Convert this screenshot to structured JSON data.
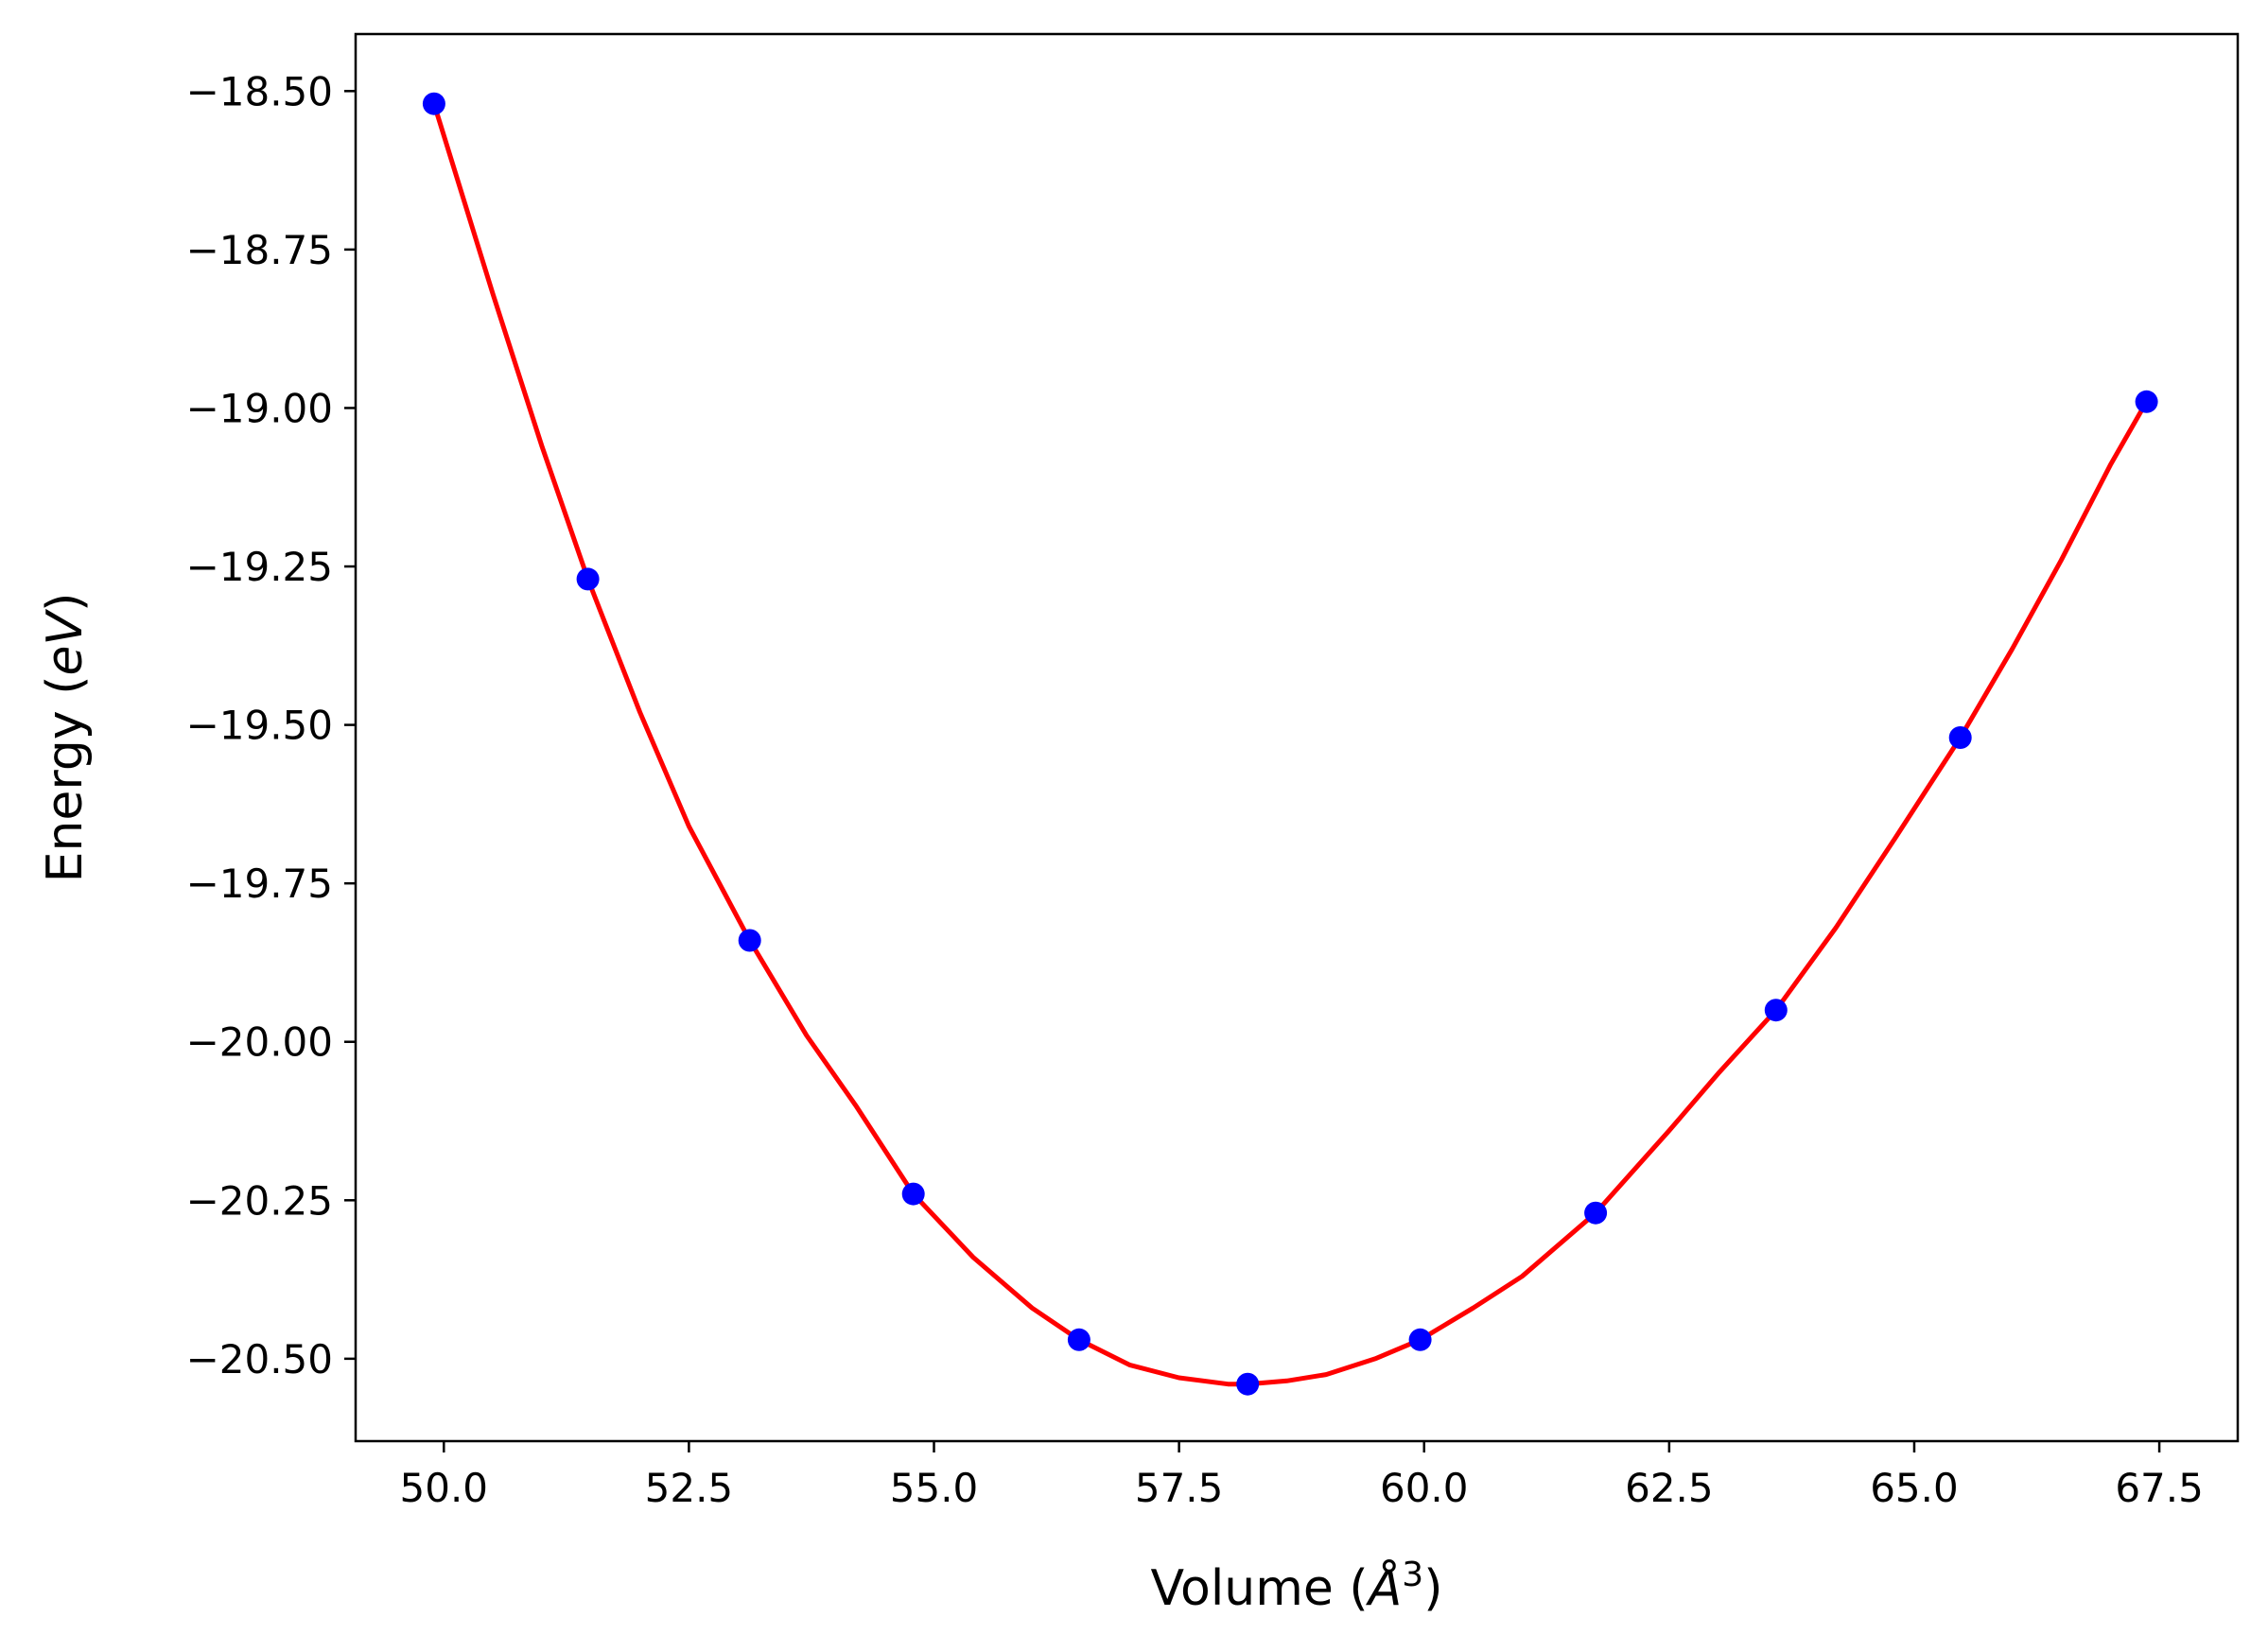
{
  "chart_data": {
    "type": "scatter",
    "xlabel": "Volume",
    "xlabel_unit": "Å",
    "xlabel_exponent": "3",
    "ylabel": "Energy",
    "ylabel_unit": "eV",
    "xlim": [
      49.1,
      68.3
    ],
    "ylim": [
      -20.63,
      -18.41
    ],
    "x_ticks": [
      50.0,
      52.5,
      55.0,
      57.5,
      60.0,
      62.5,
      65.0,
      67.5
    ],
    "x_tick_labels": [
      "50.0",
      "52.5",
      "55.0",
      "57.5",
      "60.0",
      "62.5",
      "65.0",
      "67.5"
    ],
    "y_ticks": [
      -18.5,
      -18.75,
      -19.0,
      -19.25,
      -19.5,
      -19.75,
      -20.0,
      -20.25,
      -20.5
    ],
    "y_tick_labels": [
      "−18.50",
      "−18.75",
      "−19.00",
      "−19.25",
      "−19.50",
      "−19.75",
      "−20.00",
      "−20.25",
      "−20.50"
    ],
    "grid": false,
    "series": [
      {
        "kind": "points",
        "color": "#0000ff",
        "x": [
          49.9,
          51.47,
          53.12,
          54.79,
          56.48,
          58.2,
          59.96,
          61.75,
          63.59,
          65.47,
          67.37
        ],
        "y": [
          -18.52,
          -19.27,
          -19.84,
          -20.24,
          -20.47,
          -20.54,
          -20.47,
          -20.27,
          -19.95,
          -19.52,
          -18.99
        ]
      },
      {
        "kind": "fit-curve",
        "color": "#ff0000",
        "x": [
          49.9,
          50.5,
          51.0,
          51.47,
          52.0,
          52.5,
          53.12,
          53.7,
          54.2,
          54.79,
          55.4,
          56.0,
          56.48,
          57.0,
          57.5,
          58.0,
          58.2,
          58.6,
          59.0,
          59.5,
          59.96,
          60.5,
          61.0,
          61.75,
          62.5,
          63.0,
          63.59,
          64.2,
          64.8,
          65.47,
          66.0,
          66.5,
          67.0,
          67.37
        ],
        "y": [
          -18.52,
          -18.82,
          -19.06,
          -19.27,
          -19.48,
          -19.66,
          -19.84,
          -19.99,
          -20.1,
          -20.24,
          -20.34,
          -20.42,
          -20.47,
          -20.51,
          -20.53,
          -20.54,
          -20.54,
          -20.535,
          -20.525,
          -20.5,
          -20.47,
          -20.42,
          -20.37,
          -20.27,
          -20.14,
          -20.05,
          -19.95,
          -19.82,
          -19.68,
          -19.52,
          -19.38,
          -19.24,
          -19.09,
          -18.99
        ]
      }
    ]
  }
}
